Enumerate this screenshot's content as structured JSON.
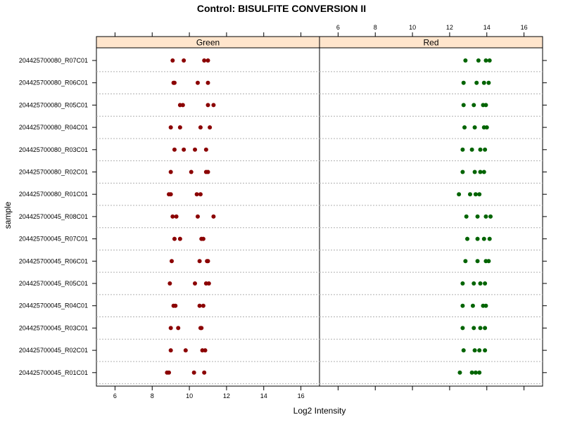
{
  "chart_data": {
    "type": "scatter",
    "title": "Control: BISULFITE CONVERSION II",
    "xlabel": "Log2 Intensity",
    "ylabel": "sample",
    "xlim": [
      5,
      17
    ],
    "xticks": [
      6,
      8,
      10,
      12,
      14,
      16
    ],
    "tick_labels": [
      "6",
      "8",
      "10",
      "12",
      "14",
      "16"
    ],
    "panels": [
      {
        "name": "Green",
        "color": "#8b0000"
      },
      {
        "name": "Red",
        "color": "#006400"
      }
    ],
    "strip_color": "#ffe5cc",
    "samples": [
      "204425700080_R07C01",
      "204425700080_R06C01",
      "204425700080_R05C01",
      "204425700080_R04C01",
      "204425700080_R03C01",
      "204425700080_R02C01",
      "204425700080_R01C01",
      "204425700045_R08C01",
      "204425700045_R07C01",
      "204425700045_R06C01",
      "204425700045_R05C01",
      "204425700045_R04C01",
      "204425700045_R03C01",
      "204425700045_R02C01",
      "204425700045_R01C01"
    ],
    "series": [
      {
        "name": "Green",
        "values": [
          [
            9.1,
            9.7,
            10.8,
            11.0
          ],
          [
            9.15,
            9.2,
            10.45,
            11.0
          ],
          [
            9.5,
            9.65,
            11.0,
            11.3
          ],
          [
            9.0,
            9.5,
            10.6,
            11.1
          ],
          [
            9.2,
            9.7,
            10.3,
            10.9
          ],
          [
            9.0,
            10.1,
            10.9,
            11.0
          ],
          [
            8.9,
            9.0,
            10.4,
            10.6
          ],
          [
            9.1,
            9.3,
            10.45,
            11.3
          ],
          [
            9.2,
            9.5,
            10.65,
            10.75
          ],
          [
            9.05,
            10.55,
            10.95,
            11.0
          ],
          [
            8.95,
            10.3,
            10.9,
            11.05
          ],
          [
            9.15,
            9.25,
            10.55,
            10.75
          ],
          [
            9.0,
            9.4,
            10.6,
            10.65
          ],
          [
            9.0,
            9.8,
            10.7,
            10.85
          ],
          [
            8.8,
            8.9,
            10.25,
            10.8
          ]
        ]
      },
      {
        "name": "Red",
        "values": [
          [
            12.85,
            13.55,
            13.95,
            14.15
          ],
          [
            12.75,
            13.45,
            13.85,
            14.1
          ],
          [
            12.75,
            13.3,
            13.8,
            13.95
          ],
          [
            12.8,
            13.35,
            13.85,
            14.0
          ],
          [
            12.7,
            13.2,
            13.65,
            13.9
          ],
          [
            12.7,
            13.35,
            13.65,
            13.85
          ],
          [
            12.5,
            13.1,
            13.4,
            13.6
          ],
          [
            12.9,
            13.5,
            13.95,
            14.2
          ],
          [
            12.95,
            13.5,
            13.85,
            14.15
          ],
          [
            12.85,
            13.5,
            13.95,
            14.1
          ],
          [
            12.7,
            13.3,
            13.65,
            13.9
          ],
          [
            12.7,
            13.25,
            13.8,
            13.95
          ],
          [
            12.7,
            13.3,
            13.65,
            13.9
          ],
          [
            12.75,
            13.35,
            13.6,
            13.9
          ],
          [
            12.55,
            13.2,
            13.4,
            13.6
          ]
        ]
      }
    ]
  }
}
